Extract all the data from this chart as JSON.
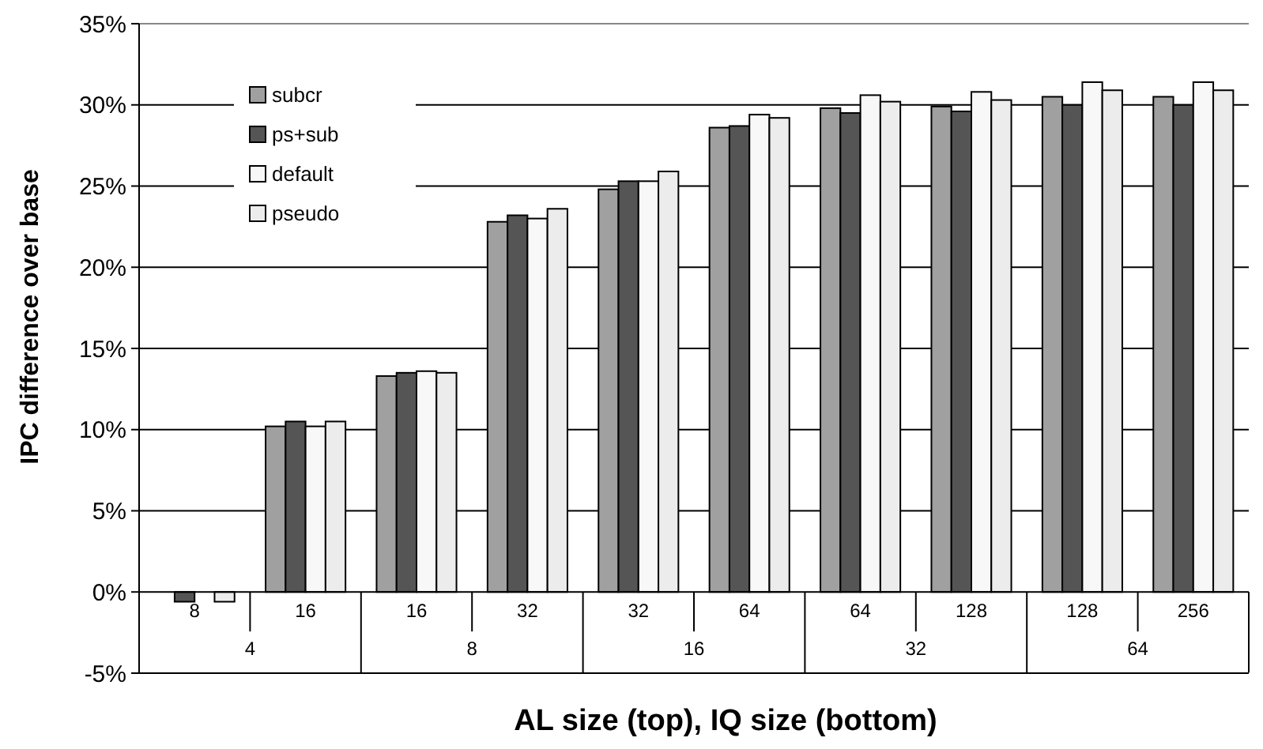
{
  "chart_data": {
    "type": "bar",
    "xlabel": "AL size (top), IQ size (bottom)",
    "ylabel": "IPC difference over base",
    "categories": [
      "8",
      "16",
      "16",
      "32",
      "32",
      "64",
      "64",
      "128",
      "128",
      "256"
    ],
    "series": [
      {
        "name": "subcr",
        "color": "#a0a0a0",
        "values": [
          0,
          10.2,
          13.3,
          22.8,
          24.8,
          28.6,
          29.8,
          29.9,
          30.5,
          30.5
        ]
      },
      {
        "name": "ps+sub",
        "color": "#555555",
        "values": [
          -0.6,
          10.5,
          13.5,
          23.2,
          25.3,
          28.7,
          29.5,
          29.6,
          30.0,
          30.0
        ]
      },
      {
        "name": "default",
        "color": "#f8f8f8",
        "values": [
          0,
          10.2,
          13.6,
          23.0,
          25.3,
          29.4,
          30.6,
          30.8,
          31.4,
          31.4
        ]
      },
      {
        "name": "pseudo",
        "color": "#ececec",
        "values": [
          -0.6,
          10.5,
          13.5,
          23.6,
          25.9,
          29.2,
          30.2,
          30.3,
          30.9,
          30.9
        ]
      }
    ],
    "ylim": [
      -5,
      35
    ],
    "yticks": [
      {
        "value": -5,
        "label": "-5%"
      },
      {
        "value": 0,
        "label": "0%"
      },
      {
        "value": 5,
        "label": "5%"
      },
      {
        "value": 10,
        "label": "10%"
      },
      {
        "value": 15,
        "label": "15%"
      },
      {
        "value": 20,
        "label": "20%"
      },
      {
        "value": 25,
        "label": "25%"
      },
      {
        "value": 30,
        "label": "30%"
      },
      {
        "value": 35,
        "label": "35%"
      }
    ],
    "grid": "y",
    "legend": "top left",
    "annotations": [
      "4",
      "8",
      "16",
      "32",
      "64"
    ]
  }
}
